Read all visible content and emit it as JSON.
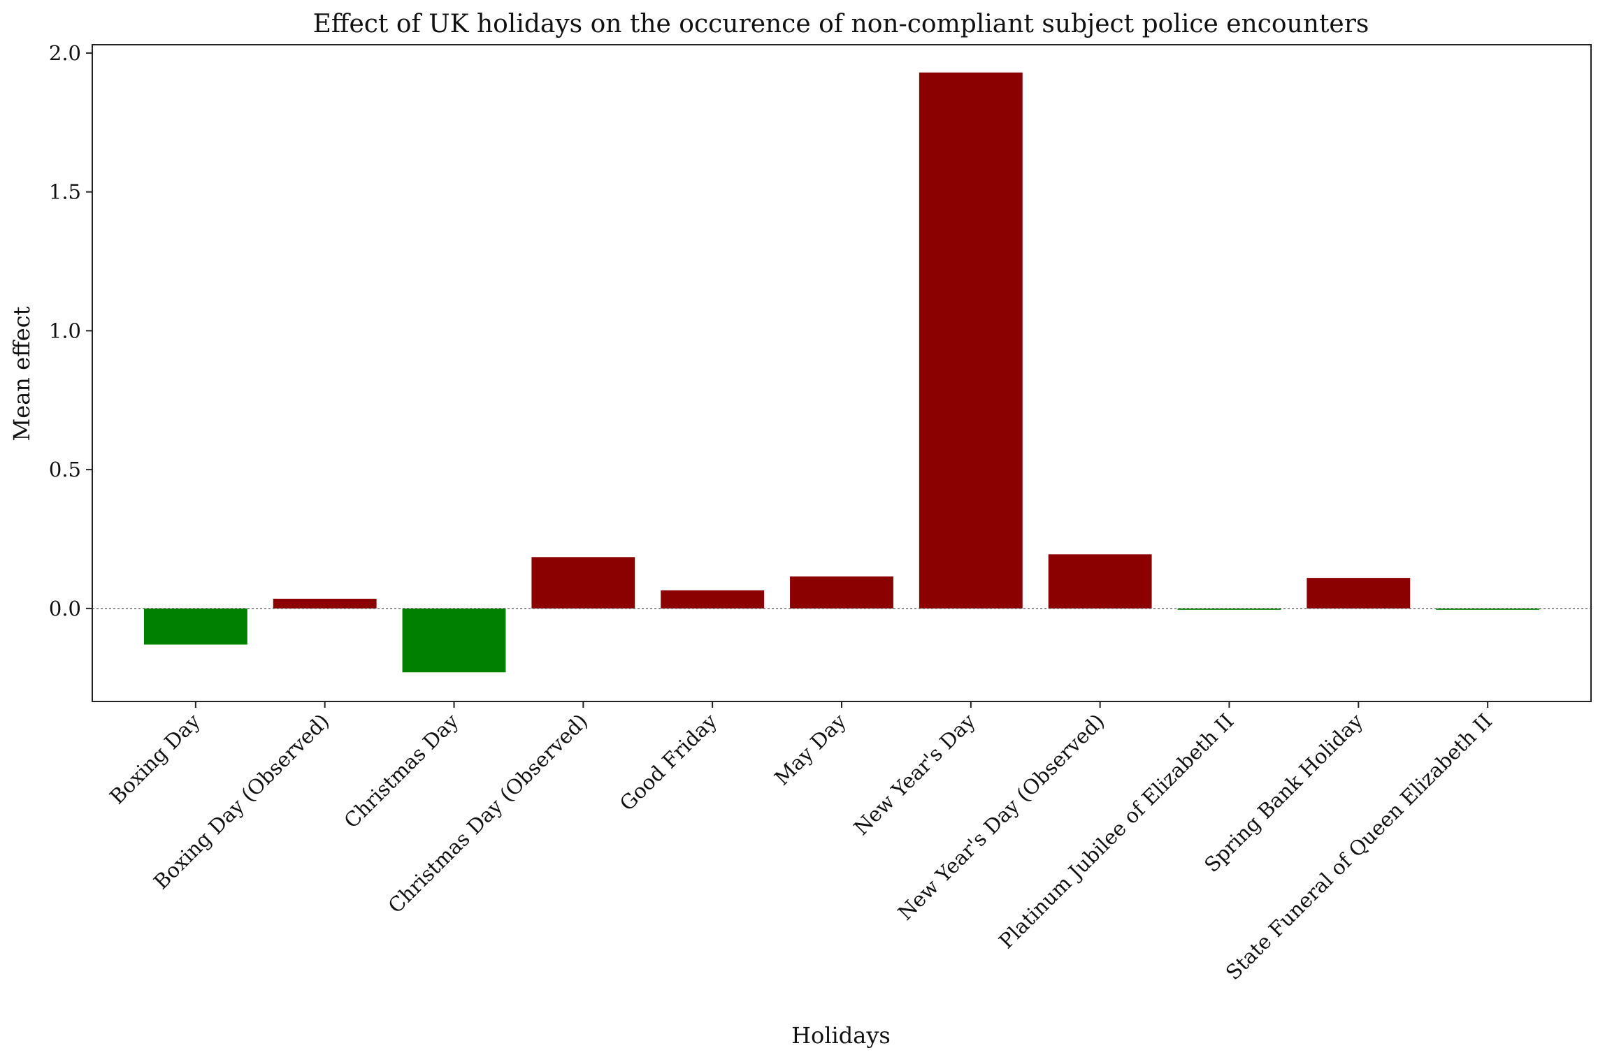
{
  "chart_data": {
    "type": "bar",
    "title": "Effect of UK holidays on the occurence of non-compliant subject police encounters",
    "xlabel": "Holidays",
    "ylabel": "Mean effect",
    "categories": [
      "Boxing Day",
      "Boxing Day (Observed)",
      "Christmas Day",
      "Christmas Day (Observed)",
      "Good Friday",
      "May Day",
      "New Year's Day",
      "New Year's Day (Observed)",
      "Platinum Jubilee of Elizabeth II",
      "Spring Bank Holiday",
      "State Funeral of Queen Elizabeth II"
    ],
    "values": [
      -0.13,
      0.035,
      -0.23,
      0.185,
      0.065,
      0.115,
      1.93,
      0.195,
      -0.005,
      0.11,
      -0.005
    ],
    "ylim": [
      -0.335,
      2.03
    ],
    "yticks": [
      0.0,
      0.5,
      1.0,
      1.5,
      2.0
    ],
    "ytick_labels": [
      "0.0",
      "0.5",
      "1.0",
      "1.5",
      "2.0"
    ],
    "zero_line": "dashed",
    "grid": false,
    "legend": "none",
    "colors": {
      "positive": "#8b0000",
      "negative": "#008000",
      "axes": "#222222",
      "zero_line": "#555555"
    }
  }
}
